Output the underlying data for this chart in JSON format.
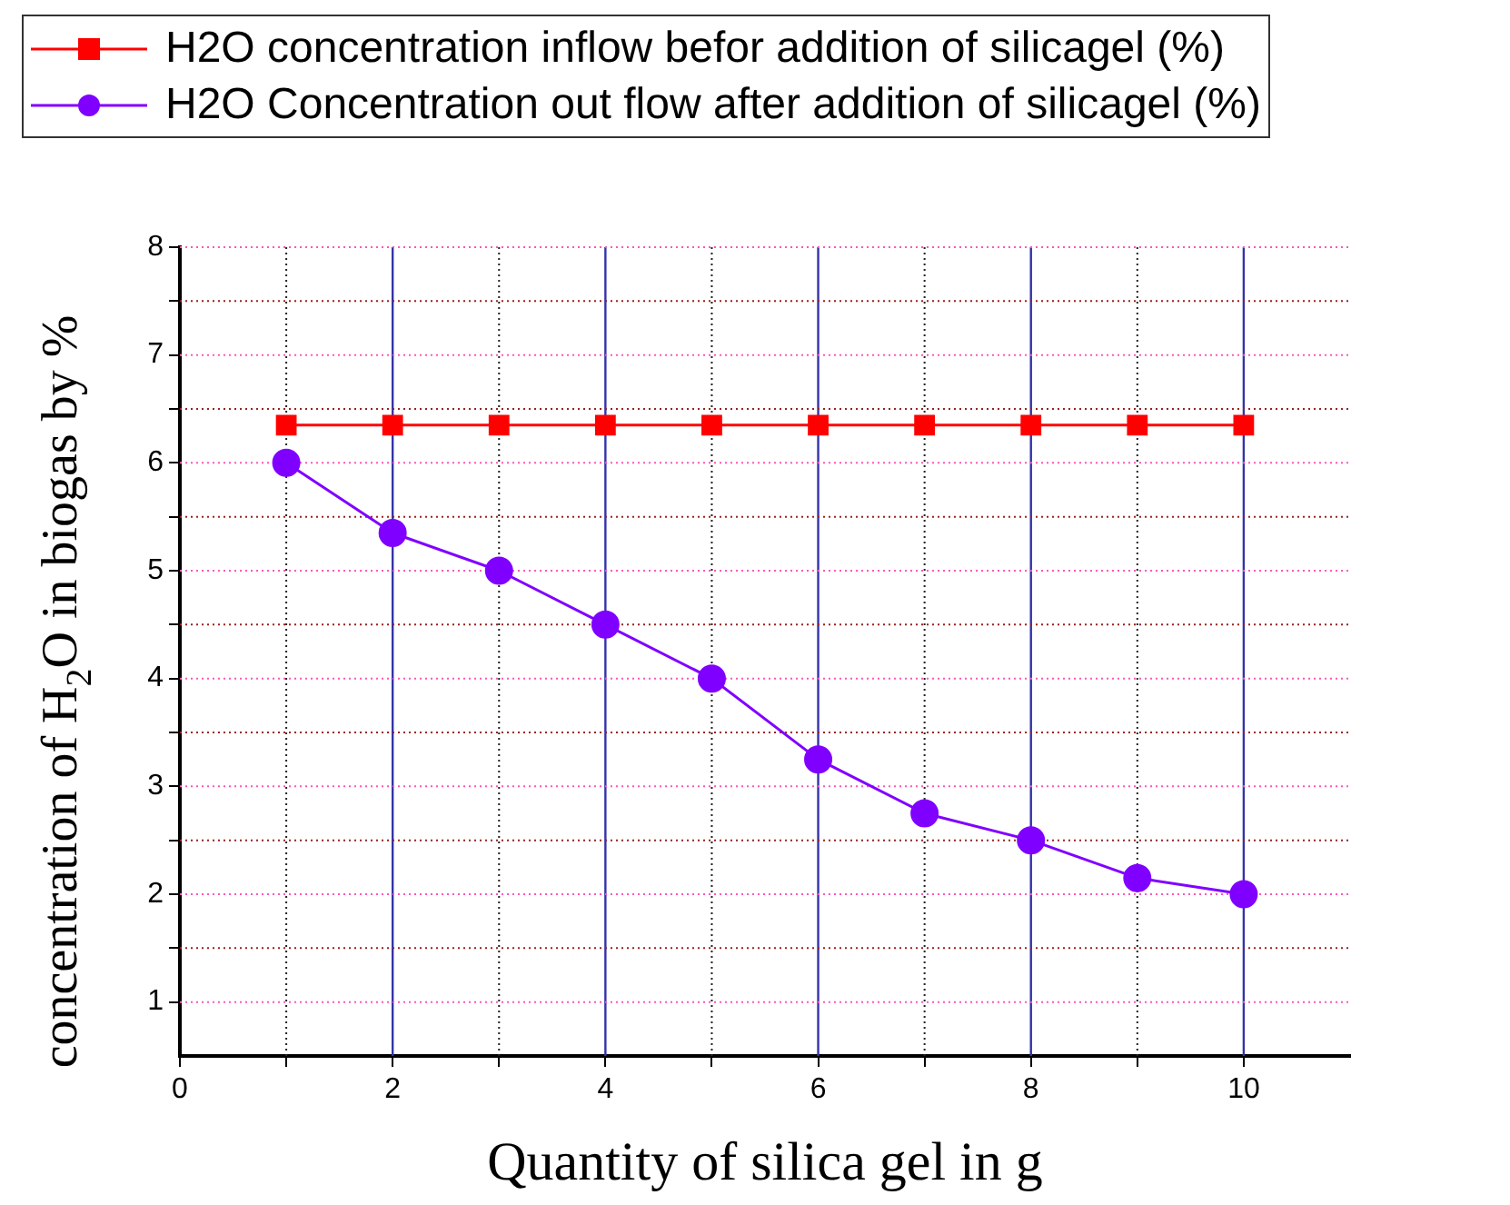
{
  "chart_data": {
    "type": "line",
    "xlabel": "Quantity of silica gel in g",
    "ylabel": "concentration of H$_{2}$O in biogas by %",
    "x": [
      1,
      2,
      3,
      4,
      5,
      6,
      7,
      8,
      9,
      10
    ],
    "series": [
      {
        "name": "H2O concentration inflow befor addition of silicagel  (%)",
        "color": "#ff0000",
        "marker": "square",
        "values": [
          6.35,
          6.35,
          6.35,
          6.35,
          6.35,
          6.35,
          6.35,
          6.35,
          6.35,
          6.35
        ]
      },
      {
        "name": "H2O Concentration out flow after addition of silicagel  (%)",
        "color": "#8000ff",
        "marker": "circle",
        "values": [
          6,
          5.35,
          5,
          4.5,
          4,
          3.25,
          2.75,
          2.5,
          2.15,
          2
        ]
      }
    ],
    "xlim": [
      0,
      11
    ],
    "xticks": [
      0,
      {
        "value": 1,
        "label": null
      },
      2,
      {
        "value": 3,
        "label": null
      },
      4,
      {
        "value": 5,
        "label": null
      },
      6,
      {
        "value": 7,
        "label": null
      },
      8,
      {
        "value": 9,
        "label": null
      },
      10
    ],
    "ylim": [
      0.5,
      8
    ],
    "yticks": [
      1,
      {
        "value": 1.5,
        "label": null
      },
      2,
      {
        "value": 2.5,
        "label": null
      },
      3,
      {
        "value": 3.5,
        "label": null
      },
      4,
      {
        "value": 4.5,
        "label": null
      },
      5,
      {
        "value": 5.5,
        "label": null
      },
      6,
      {
        "value": 6.5,
        "label": null
      },
      7,
      {
        "value": 7.5,
        "label": null
      },
      8
    ],
    "grid": true,
    "legend": "top",
    "line_style": "solid"
  }
}
